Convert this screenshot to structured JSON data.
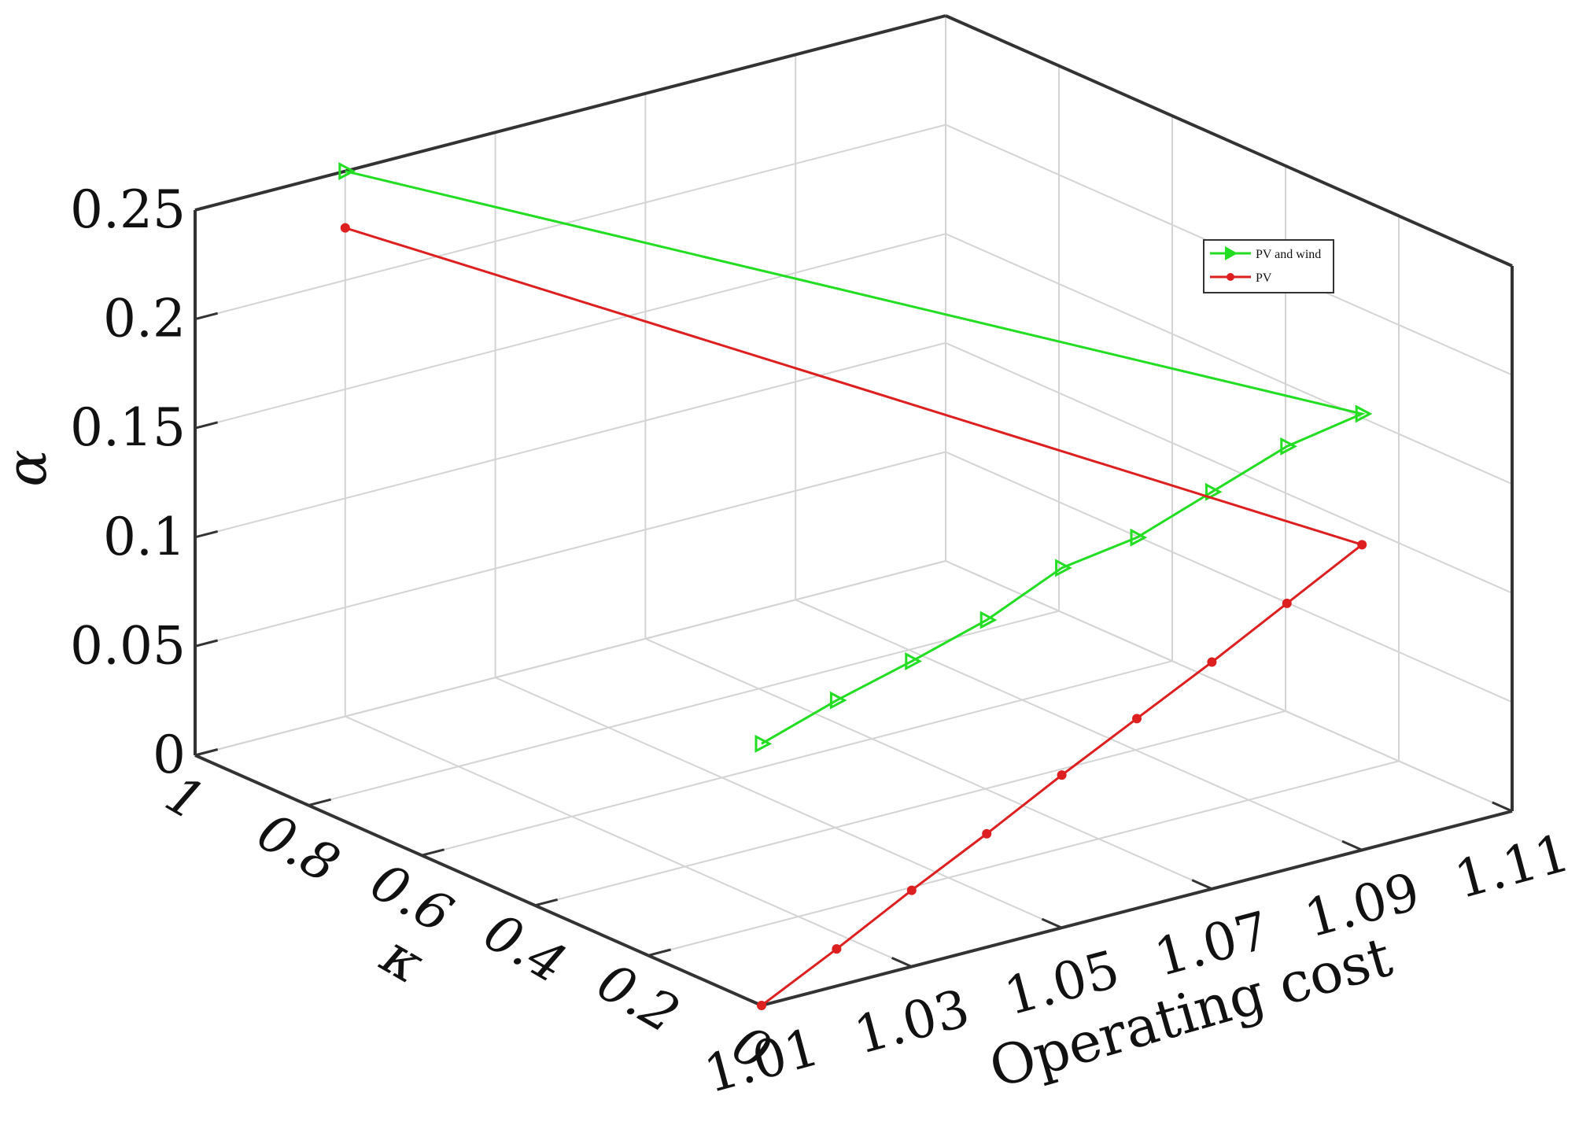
{
  "chart_data": {
    "type": "line",
    "subtype": "3d-line",
    "xlabel": "Operating cost",
    "ylabel": "κ",
    "zlabel": "α",
    "x_ticks": [
      "1.01",
      "1.03",
      "1.05",
      "1.07",
      "1.09",
      "1.11"
    ],
    "y_ticks": [
      "0",
      "0.2",
      "0.4",
      "0.6",
      "0.8",
      "1"
    ],
    "z_ticks": [
      "0",
      "0.05",
      "0.1",
      "0.15",
      "0.2",
      "0.25"
    ],
    "xlim": [
      1.01,
      1.11
    ],
    "ylim": [
      0,
      1
    ],
    "zlim": [
      0,
      0.25
    ],
    "grid": true,
    "legend_position": "top-right",
    "series": [
      {
        "name": "PV and wind",
        "color": "#22dd22",
        "marker": "triangle-right",
        "points": [
          {
            "x": 1.01,
            "y": 0.0,
            "z": 0.12
          },
          {
            "x": 1.02,
            "y": 0.0,
            "z": 0.131
          },
          {
            "x": 1.03,
            "y": 0.0,
            "z": 0.14
          },
          {
            "x": 1.04,
            "y": 0.0,
            "z": 0.15
          },
          {
            "x": 1.05,
            "y": 0.0,
            "z": 0.165
          },
          {
            "x": 1.06,
            "y": 0.0,
            "z": 0.17
          },
          {
            "x": 1.07,
            "y": 0.0,
            "z": 0.182
          },
          {
            "x": 1.08,
            "y": 0.0,
            "z": 0.194
          },
          {
            "x": 1.09,
            "y": 0.0,
            "z": 0.2
          },
          {
            "x": 1.03,
            "y": 1.0,
            "z": 0.25
          }
        ]
      },
      {
        "name": "PV",
        "color": "#dd1f1f",
        "marker": "dot",
        "points": [
          {
            "x": 1.01,
            "y": 0.0,
            "z": 0.0
          },
          {
            "x": 1.02,
            "y": 0.0,
            "z": 0.017
          },
          {
            "x": 1.03,
            "y": 0.0,
            "z": 0.035
          },
          {
            "x": 1.04,
            "y": 0.0,
            "z": 0.052
          },
          {
            "x": 1.05,
            "y": 0.0,
            "z": 0.07
          },
          {
            "x": 1.06,
            "y": 0.0,
            "z": 0.087
          },
          {
            "x": 1.07,
            "y": 0.0,
            "z": 0.104
          },
          {
            "x": 1.08,
            "y": 0.0,
            "z": 0.122
          },
          {
            "x": 1.09,
            "y": 0.0,
            "z": 0.14
          },
          {
            "x": 1.03,
            "y": 1.0,
            "z": 0.224
          }
        ]
      }
    ]
  }
}
